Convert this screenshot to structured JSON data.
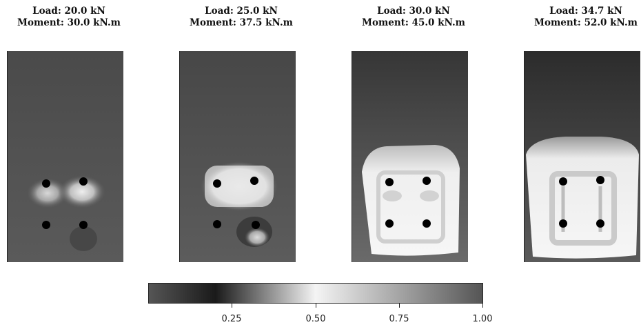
{
  "panels": [
    {
      "load": "Load: 20.0 kN",
      "moment": "Moment: 30.0 kN.m"
    },
    {
      "load": "Load: 25.0 kN",
      "moment": "Moment: 37.5 kN.m"
    },
    {
      "load": "Load: 30.0 kN",
      "moment": "Moment: 45.0 kN.m"
    },
    {
      "load": "Load: 34.7 kN",
      "moment": "Moment: 52.0 kN.m"
    }
  ],
  "colorbar": {
    "ticks": [
      "0.25",
      "0.50",
      "0.75",
      "1.00"
    ],
    "range": [
      0.0,
      1.0
    ],
    "colors": [
      "#555555",
      "#1a1a1a",
      "#f4f4f4",
      "#555555"
    ]
  }
}
